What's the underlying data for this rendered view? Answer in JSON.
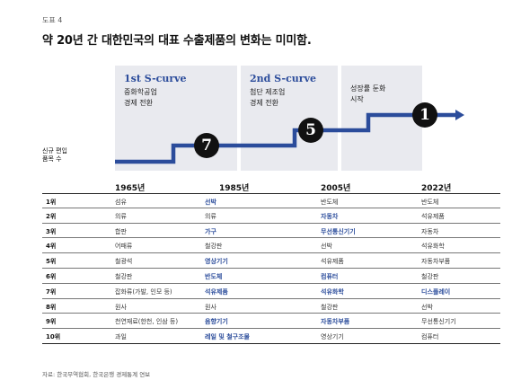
{
  "figure_label": "도표 4",
  "title": "약 20년 간 대한민국의 대표 수출제품의 변화는 미미함.",
  "curves": [
    {
      "head": "1st S-curve",
      "lines": [
        "중화학공업",
        "경제 전환"
      ],
      "rank": "7"
    },
    {
      "head": "2nd S-curve",
      "lines": [
        "첨단 제조업",
        "경제 전환"
      ],
      "rank": "5"
    },
    {
      "head": "",
      "lines": [
        "성장률 둔화",
        "시작"
      ],
      "rank": "1"
    }
  ],
  "axis_label": [
    "신규 편입",
    "품목 수"
  ],
  "colors": {
    "accent": "#2b4c9b",
    "panel": "#e9eaef",
    "circle": "#111111"
  },
  "table": {
    "years": [
      "1965년",
      "1985년",
      "2005년",
      "2022년"
    ],
    "rows": [
      {
        "rank": "1위",
        "cells": [
          {
            "t": "섬유",
            "h": false
          },
          {
            "t": "선박",
            "h": true
          },
          {
            "t": "반도체",
            "h": false
          },
          {
            "t": "반도체",
            "h": false
          }
        ]
      },
      {
        "rank": "2위",
        "cells": [
          {
            "t": "의류",
            "h": false
          },
          {
            "t": "의류",
            "h": false
          },
          {
            "t": "자동차",
            "h": true
          },
          {
            "t": "석유제품",
            "h": false
          }
        ]
      },
      {
        "rank": "3위",
        "cells": [
          {
            "t": "합판",
            "h": false
          },
          {
            "t": "가구",
            "h": true
          },
          {
            "t": "무선통신기기",
            "h": true
          },
          {
            "t": "자동차",
            "h": false
          }
        ]
      },
      {
        "rank": "4위",
        "cells": [
          {
            "t": "어패류",
            "h": false
          },
          {
            "t": "철강판",
            "h": false
          },
          {
            "t": "선박",
            "h": false
          },
          {
            "t": "석유화학",
            "h": false
          }
        ]
      },
      {
        "rank": "5위",
        "cells": [
          {
            "t": "철광석",
            "h": false
          },
          {
            "t": "영상기기",
            "h": true
          },
          {
            "t": "석유제품",
            "h": false
          },
          {
            "t": "자동차부품",
            "h": false
          }
        ]
      },
      {
        "rank": "6위",
        "cells": [
          {
            "t": "철강판",
            "h": false
          },
          {
            "t": "반도체",
            "h": true
          },
          {
            "t": "컴퓨터",
            "h": true
          },
          {
            "t": "철강판",
            "h": false
          }
        ]
      },
      {
        "rank": "7위",
        "cells": [
          {
            "t": "잡화류(가발, 인모 등)",
            "h": false
          },
          {
            "t": "석유제품",
            "h": true
          },
          {
            "t": "석유화학",
            "h": true
          },
          {
            "t": "디스플레이",
            "h": true
          }
        ]
      },
      {
        "rank": "8위",
        "cells": [
          {
            "t": "원사",
            "h": false
          },
          {
            "t": "원사",
            "h": false
          },
          {
            "t": "철강판",
            "h": false
          },
          {
            "t": "선박",
            "h": false
          }
        ]
      },
      {
        "rank": "9위",
        "cells": [
          {
            "t": "천연재료(한천, 인삼 등)",
            "h": false
          },
          {
            "t": "음향기기",
            "h": true
          },
          {
            "t": "자동차부품",
            "h": true
          },
          {
            "t": "무선통신기기",
            "h": false
          }
        ]
      },
      {
        "rank": "10위",
        "cells": [
          {
            "t": "과일",
            "h": false
          },
          {
            "t": "레일 및 철구조물",
            "h": true
          },
          {
            "t": "영상기기",
            "h": false
          },
          {
            "t": "컴퓨터",
            "h": false
          }
        ]
      }
    ]
  },
  "source": "자료: 한국무역협회, 한국은행 경제통계 연보"
}
